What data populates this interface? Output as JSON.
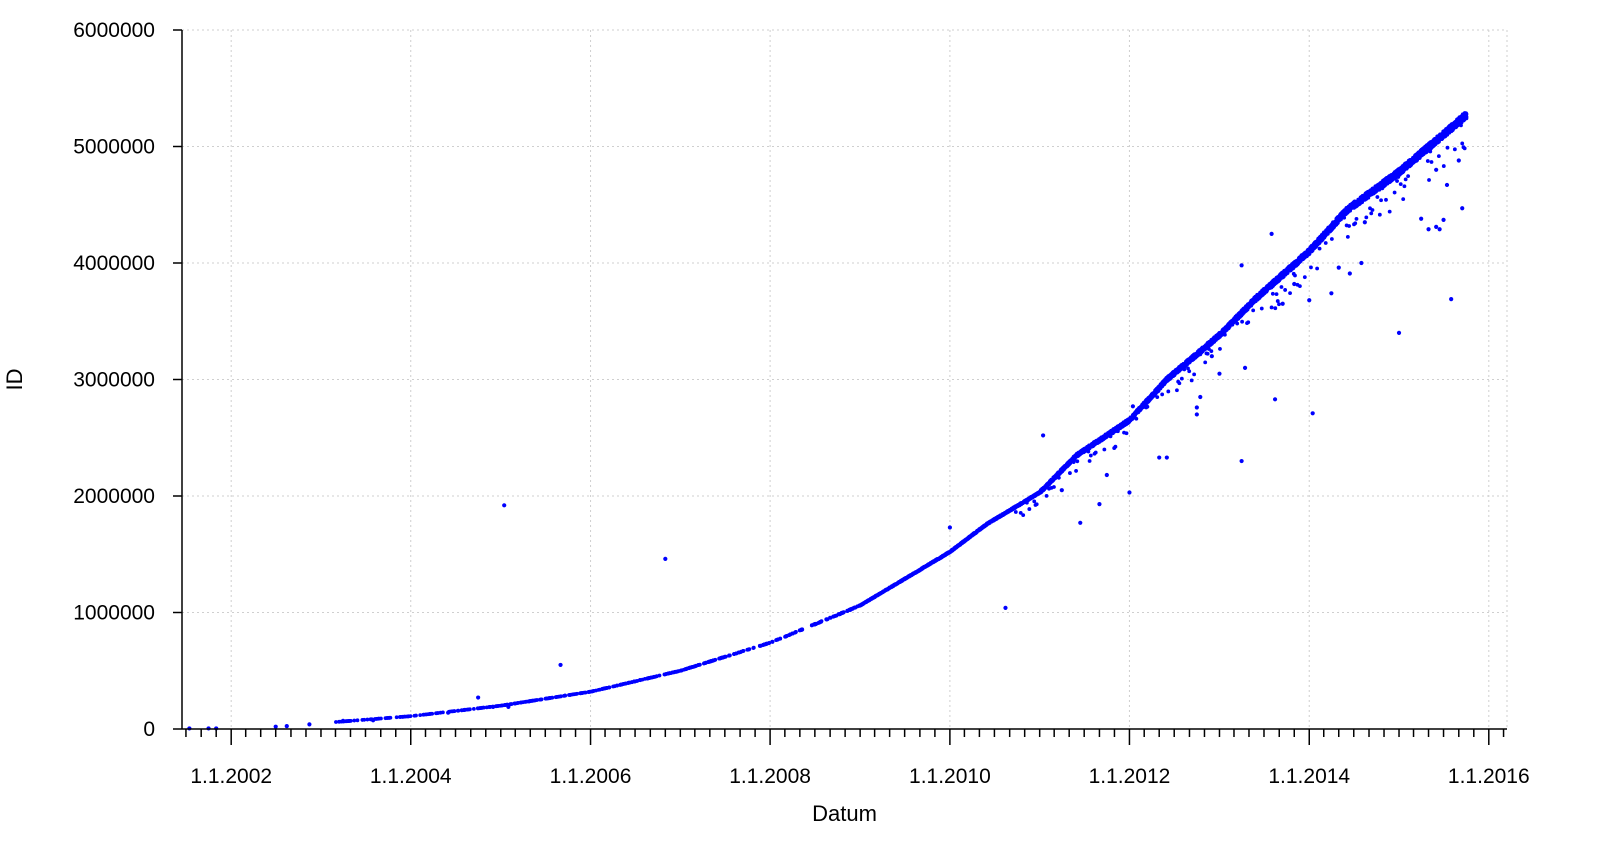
{
  "chart_data": {
    "type": "scatter",
    "title": "",
    "xlabel": "Datum",
    "ylabel": "ID",
    "xlim": [
      "2001-06-15",
      "2016-03-15"
    ],
    "ylim": [
      0,
      6000000
    ],
    "grid": true,
    "marker_color": "#0000ff",
    "x_ticks": [
      {
        "date": "2002-01-01",
        "label": "1.1.2002"
      },
      {
        "date": "2004-01-01",
        "label": "1.1.2004"
      },
      {
        "date": "2006-01-01",
        "label": "1.1.2006"
      },
      {
        "date": "2008-01-01",
        "label": "1.1.2008"
      },
      {
        "date": "2010-01-01",
        "label": "1.1.2010"
      },
      {
        "date": "2012-01-01",
        "label": "1.1.2012"
      },
      {
        "date": "2014-01-01",
        "label": "1.1.2014"
      },
      {
        "date": "2016-01-01",
        "label": "1.1.2016"
      }
    ],
    "y_ticks": [
      {
        "value": 0,
        "label": "0"
      },
      {
        "value": 1000000,
        "label": "1000000"
      },
      {
        "value": 2000000,
        "label": "2000000"
      },
      {
        "value": 3000000,
        "label": "3000000"
      },
      {
        "value": 4000000,
        "label": "4000000"
      },
      {
        "value": 5000000,
        "label": "5000000"
      },
      {
        "value": 6000000,
        "label": "6000000"
      }
    ],
    "trend": [
      [
        "2001-07-01",
        0
      ],
      [
        "2002-06-01",
        20000
      ],
      [
        "2003-01-01",
        50000
      ],
      [
        "2004-01-01",
        110000
      ],
      [
        "2005-01-01",
        200000
      ],
      [
        "2006-01-01",
        320000
      ],
      [
        "2007-01-01",
        500000
      ],
      [
        "2008-01-01",
        740000
      ],
      [
        "2009-01-01",
        1060000
      ],
      [
        "2010-01-01",
        1520000
      ],
      [
        "2010-06-01",
        1760000
      ],
      [
        "2011-01-01",
        2030000
      ],
      [
        "2011-06-01",
        2350000
      ],
      [
        "2012-01-01",
        2650000
      ],
      [
        "2012-06-01",
        3000000
      ],
      [
        "2013-01-01",
        3380000
      ],
      [
        "2013-06-01",
        3700000
      ],
      [
        "2014-01-01",
        4100000
      ],
      [
        "2014-06-01",
        4450000
      ],
      [
        "2015-01-01",
        4780000
      ],
      [
        "2015-06-01",
        5050000
      ],
      [
        "2015-10-01",
        5270000
      ]
    ],
    "trend_density": [
      [
        "2001-07-01",
        1
      ],
      [
        "2004-01-01",
        1
      ],
      [
        "2006-01-01",
        1.5
      ],
      [
        "2008-01-01",
        2
      ],
      [
        "2009-06-01",
        2.5
      ],
      [
        "2010-06-01",
        4
      ],
      [
        "2011-06-01",
        5
      ],
      [
        "2012-06-01",
        6
      ],
      [
        "2013-06-01",
        6
      ],
      [
        "2014-06-01",
        6
      ],
      [
        "2015-10-01",
        7
      ]
    ],
    "outliers": [
      [
        "2005-01-15",
        1920000
      ],
      [
        "2006-11-01",
        1460000
      ],
      [
        "2005-09-01",
        550000
      ],
      [
        "2004-10-01",
        270000
      ],
      [
        "2004-12-01",
        190000
      ],
      [
        "2005-02-01",
        190000
      ],
      [
        "2001-07-15",
        5000
      ],
      [
        "2001-10-01",
        5000
      ],
      [
        "2001-11-01",
        5000
      ],
      [
        "2002-07-01",
        20000
      ],
      [
        "2002-08-15",
        25000
      ],
      [
        "2002-11-15",
        40000
      ],
      [
        "2003-04-01",
        70000
      ],
      [
        "2003-08-01",
        75000
      ],
      [
        "2004-06-01",
        140000
      ],
      [
        "2010-01-01",
        1730000
      ],
      [
        "2010-08-15",
        1040000
      ],
      [
        "2011-01-15",
        2520000
      ],
      [
        "2011-06-15",
        1770000
      ],
      [
        "2011-09-01",
        1930000
      ],
      [
        "2012-01-01",
        2030000
      ],
      [
        "2012-01-15",
        2770000
      ],
      [
        "2012-05-01",
        2330000
      ],
      [
        "2012-06-01",
        2330000
      ],
      [
        "2012-10-01",
        2700000
      ],
      [
        "2012-10-01",
        2760000
      ],
      [
        "2012-10-15",
        2850000
      ],
      [
        "2013-01-01",
        3050000
      ],
      [
        "2013-04-01",
        3980000
      ],
      [
        "2013-04-01",
        2300000
      ],
      [
        "2013-04-15",
        3100000
      ],
      [
        "2013-08-01",
        4250000
      ],
      [
        "2013-08-15",
        2830000
      ],
      [
        "2013-09-15",
        3650000
      ],
      [
        "2014-01-15",
        2710000
      ],
      [
        "2014-01-01",
        3680000
      ],
      [
        "2014-04-01",
        3740000
      ],
      [
        "2014-06-15",
        3910000
      ],
      [
        "2014-08-15",
        4350000
      ],
      [
        "2015-01-01",
        3400000
      ],
      [
        "2015-06-01",
        4310000
      ],
      [
        "2015-06-15",
        4290000
      ],
      [
        "2015-07-01",
        4370000
      ],
      [
        "2015-08-01",
        3690000
      ],
      [
        "2015-09-15",
        4470000
      ],
      [
        "2015-04-01",
        4380000
      ],
      [
        "2015-05-01",
        4290000
      ],
      [
        "2015-09-01",
        4880000
      ],
      [
        "2015-07-15",
        4670000
      ],
      [
        "2015-06-01",
        4800000
      ],
      [
        "2014-08-01",
        4000000
      ],
      [
        "2014-05-01",
        3960000
      ],
      [
        "2013-11-01",
        3820000
      ],
      [
        "2012-12-01",
        3200000
      ],
      [
        "2012-07-01",
        3040000
      ],
      [
        "2011-10-01",
        2180000
      ],
      [
        "2011-04-01",
        2050000
      ]
    ]
  }
}
